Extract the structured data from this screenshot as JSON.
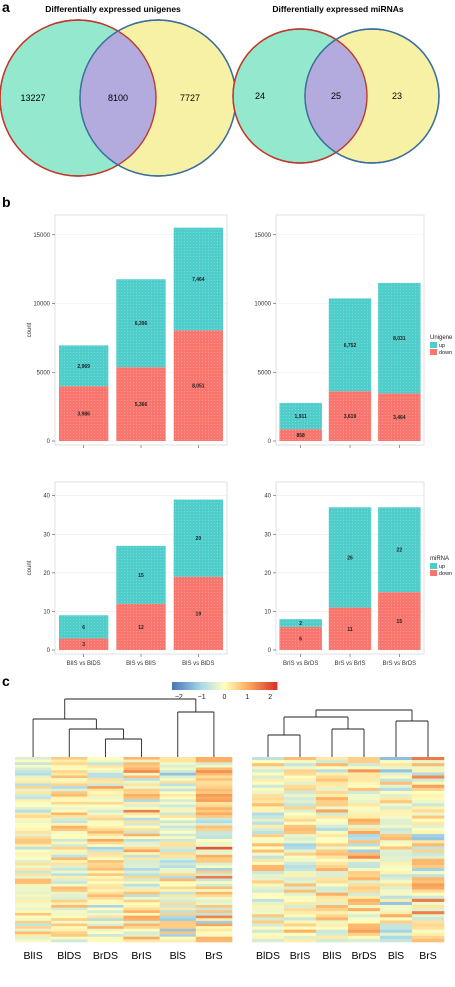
{
  "panel_labels": {
    "a": "a",
    "b": "b",
    "c": "c"
  },
  "venn": [
    {
      "title": "Differentially expressed unigenes",
      "left": "13227",
      "center": "8100",
      "right": "7727"
    },
    {
      "title": "Differentially expressed miRNAs",
      "left": "24",
      "center": "25",
      "right": "23"
    }
  ],
  "colors": {
    "up": "#4ECDCB",
    "down": "#F8766D",
    "venn_left": "#93E8CD",
    "venn_right": "#F7F1A5",
    "venn_center": "#B3AADD",
    "venn_left_stroke": "#C0392B",
    "venn_right_stroke": "#3B6E9E"
  },
  "legends": {
    "unigene": {
      "title": "Unigene",
      "up": "up",
      "down": "down"
    },
    "mirna": {
      "title": "miRNA",
      "up": "up",
      "down": "down"
    }
  },
  "chart_data": [
    {
      "type": "bar",
      "stacked": true,
      "ylabel": "count",
      "ylim": [
        0,
        16000
      ],
      "yticks": [
        "0",
        "5000",
        "10000",
        "15000"
      ],
      "ytick_values": [
        0,
        5000,
        10000,
        15000
      ],
      "categories": [
        "BlIS vs BlDS",
        "BlS vs BlIS",
        "BlS vs BlDS"
      ],
      "show_xlabels": false,
      "series": [
        {
          "name": "down",
          "values": [
            3986,
            5366,
            8051
          ],
          "labels": [
            "3,986",
            "5,366",
            "8,051"
          ]
        },
        {
          "name": "up",
          "values": [
            2969,
            6396,
            7464
          ],
          "labels": [
            "2,969",
            "6,396",
            "7,464"
          ]
        }
      ]
    },
    {
      "type": "bar",
      "stacked": true,
      "ylabel": "",
      "ylim": [
        0,
        16000
      ],
      "yticks": [
        "0",
        "5000",
        "10000",
        "15000"
      ],
      "ytick_values": [
        0,
        5000,
        10000,
        15000
      ],
      "categories": [
        "BrIS vs BrDS",
        "BrS vs BrIS",
        "BrS vs BrDS"
      ],
      "show_xlabels": false,
      "series": [
        {
          "name": "down",
          "values": [
            858,
            3619,
            3464
          ],
          "labels": [
            "858",
            "3,619",
            "3,464"
          ]
        },
        {
          "name": "up",
          "values": [
            1911,
            6752,
            8031
          ],
          "labels": [
            "1,911",
            "6,752",
            "8,031"
          ]
        }
      ]
    },
    {
      "type": "bar",
      "stacked": true,
      "ylabel": "count",
      "ylim": [
        0,
        42
      ],
      "yticks": [
        "0",
        "10",
        "20",
        "30",
        "40"
      ],
      "ytick_values": [
        0,
        10,
        20,
        30,
        40
      ],
      "categories": [
        "BlIS vs BlDS",
        "BlS vs BlIS",
        "BlS vs BlDS"
      ],
      "show_xlabels": true,
      "series": [
        {
          "name": "down",
          "values": [
            3,
            12,
            19
          ],
          "labels": [
            "3",
            "12",
            "19"
          ]
        },
        {
          "name": "up",
          "values": [
            6,
            15,
            20
          ],
          "labels": [
            "6",
            "15",
            "20"
          ]
        }
      ]
    },
    {
      "type": "bar",
      "stacked": true,
      "ylabel": "",
      "ylim": [
        0,
        42
      ],
      "yticks": [
        "0",
        "10",
        "20",
        "30",
        "40"
      ],
      "ytick_values": [
        0,
        10,
        20,
        30,
        40
      ],
      "categories": [
        "BrIS vs BrDS",
        "BrS vs BrIS",
        "BrS vs BrDS"
      ],
      "show_xlabels": true,
      "series": [
        {
          "name": "down",
          "values": [
            6,
            11,
            15
          ],
          "labels": [
            "6",
            "11",
            "15"
          ]
        },
        {
          "name": "up",
          "values": [
            2,
            26,
            22
          ],
          "labels": [
            "2",
            "26",
            "22"
          ]
        }
      ]
    }
  ],
  "colorbar": {
    "ticks": [
      "−2",
      "−1",
      "0",
      "1",
      "2"
    ],
    "tick_values": [
      -2,
      -1,
      0,
      1,
      2
    ]
  },
  "heatmaps": [
    {
      "columns": [
        "BlIS",
        "BlDS",
        "BrDS",
        "BrIS",
        "BlS",
        "BrS"
      ]
    },
    {
      "columns": [
        "BlDS",
        "BrIS",
        "BlIS",
        "BrDS",
        "BlS",
        "BrS"
      ]
    }
  ]
}
